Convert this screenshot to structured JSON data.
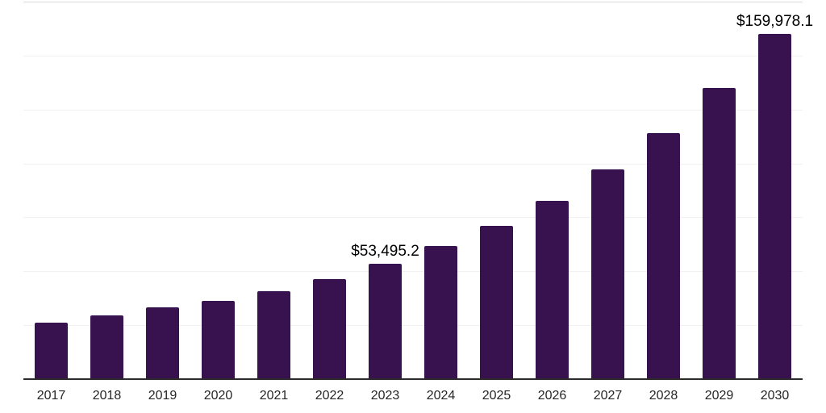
{
  "chart_data": {
    "type": "bar",
    "title": "",
    "xlabel": "",
    "ylabel": "",
    "categories": [
      "2017",
      "2018",
      "2019",
      "2020",
      "2021",
      "2022",
      "2023",
      "2024",
      "2025",
      "2026",
      "2027",
      "2028",
      "2029",
      "2030"
    ],
    "values": [
      26000,
      29400,
      33300,
      36300,
      40800,
      46400,
      53495.2,
      61700,
      71100,
      82700,
      97300,
      114100,
      135000,
      159978.1
    ],
    "data_labels": [
      {
        "category": "2023",
        "text": "$53,495.2"
      },
      {
        "category": "2030",
        "text": "$159,978.1"
      }
    ],
    "ylim": [
      0,
      175000
    ],
    "grid_interval": 25000,
    "grid": true,
    "legend": false,
    "colors": {
      "background": "#ffffff",
      "bar": "#37124f",
      "axis_line": "#2b2b2b",
      "gridline": "#f1f1f1",
      "gridline_top": "#d9d9d9",
      "data_label_text": "#000000",
      "tick_label_text": "#262626"
    }
  }
}
